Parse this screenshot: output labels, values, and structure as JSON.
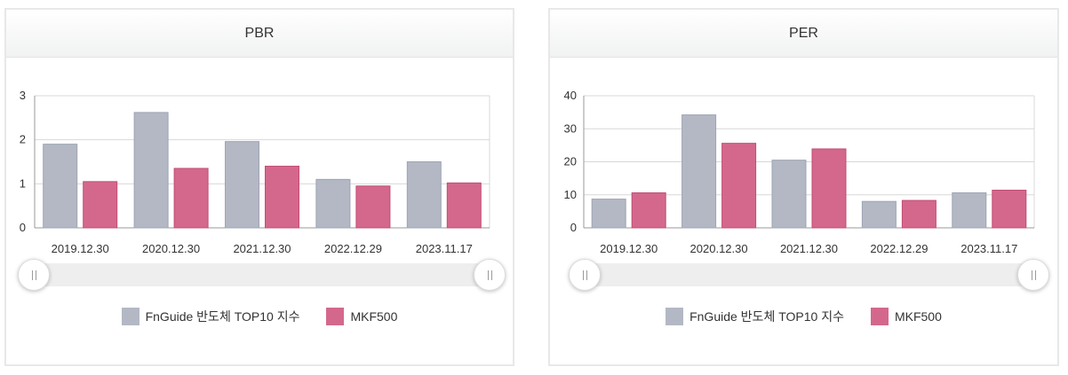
{
  "colors": {
    "series_1": "#b3b8c4",
    "series_1_border": "#9ea4b3",
    "series_2": "#d4688c",
    "series_2_border": "#c14d75",
    "grid": "#d8d8d8",
    "axis": "#999999"
  },
  "panels": [
    {
      "header": "PBR",
      "slider": {
        "left_handle_icon": "grip-icon",
        "right_handle_icon": "grip-icon"
      }
    },
    {
      "header": "PER",
      "slider": {
        "left_handle_icon": "grip-icon",
        "right_handle_icon": "grip-icon"
      }
    }
  ],
  "legend": [
    {
      "label": "FnGuide 반도체 TOP10 지수"
    },
    {
      "label": "MKF500"
    }
  ],
  "chart_data": [
    {
      "type": "bar",
      "title": "PBR",
      "categories": [
        "2019.12.30",
        "2020.12.30",
        "2021.12.30",
        "2022.12.29",
        "2023.11.17"
      ],
      "series": [
        {
          "name": "FnGuide 반도체 TOP10 지수",
          "values": [
            1.9,
            2.62,
            1.96,
            1.1,
            1.5
          ]
        },
        {
          "name": "MKF500",
          "values": [
            1.05,
            1.35,
            1.4,
            0.95,
            1.02
          ]
        }
      ],
      "ylim": [
        0,
        3
      ],
      "yticks": [
        0,
        1,
        2,
        3
      ],
      "grid": true,
      "legend": "bottom"
    },
    {
      "type": "bar",
      "title": "PER",
      "categories": [
        "2019.12.30",
        "2020.12.30",
        "2021.12.30",
        "2022.12.29",
        "2023.11.17"
      ],
      "series": [
        {
          "name": "FnGuide 반도체 TOP10 지수",
          "values": [
            8.7,
            34.2,
            20.5,
            8.0,
            10.6
          ]
        },
        {
          "name": "MKF500",
          "values": [
            10.6,
            25.6,
            23.9,
            8.3,
            11.4
          ]
        }
      ],
      "ylim": [
        0,
        40
      ],
      "yticks": [
        0,
        10,
        20,
        30,
        40
      ],
      "grid": true,
      "legend": "bottom"
    }
  ]
}
